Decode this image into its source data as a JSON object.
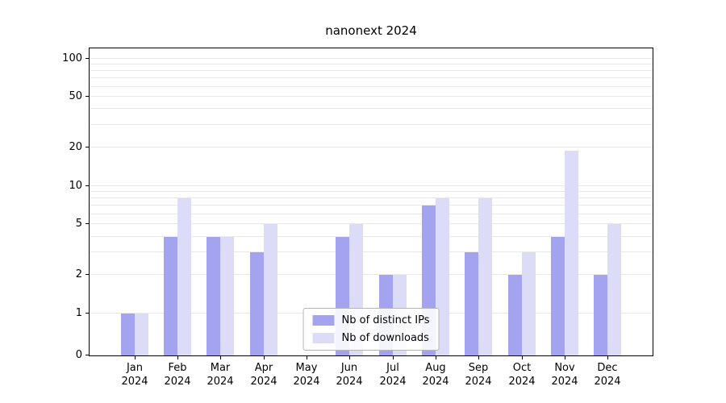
{
  "title": "nanonext 2024",
  "chart_data": {
    "type": "bar",
    "title": "nanonext 2024",
    "categories": [
      "Jan",
      "Feb",
      "Mar",
      "Apr",
      "May",
      "Jun",
      "Jul",
      "Aug",
      "Sep",
      "Oct",
      "Nov",
      "Dec"
    ],
    "year": "2024",
    "series": [
      {
        "name": "Nb of distinct IPs",
        "color": "#a3a3ef",
        "values": [
          1,
          4,
          4,
          3,
          0,
          4,
          2,
          7,
          3,
          2,
          4,
          2
        ]
      },
      {
        "name": "Nb of downloads",
        "color": "#dddcf8",
        "values": [
          1,
          8,
          4,
          5,
          0,
          5,
          2,
          8,
          8,
          3,
          19,
          5
        ]
      }
    ],
    "yscale": "symlog",
    "ymax": 120,
    "yticks": [
      0,
      1,
      2,
      5,
      10,
      20,
      50,
      100
    ],
    "grid_values": [
      1,
      2,
      3,
      4,
      5,
      6,
      7,
      8,
      9,
      10,
      20,
      30,
      40,
      50,
      60,
      70,
      80,
      90,
      100
    ],
    "grid": true,
    "legend_position": "lower center",
    "xlabel": "",
    "ylabel": ""
  },
  "colors": {
    "background": "#ffffff",
    "axis": "#000000",
    "grid": "#e8e8e8",
    "series_ips": "#a3a3ef",
    "series_downloads": "#dddcf8"
  }
}
